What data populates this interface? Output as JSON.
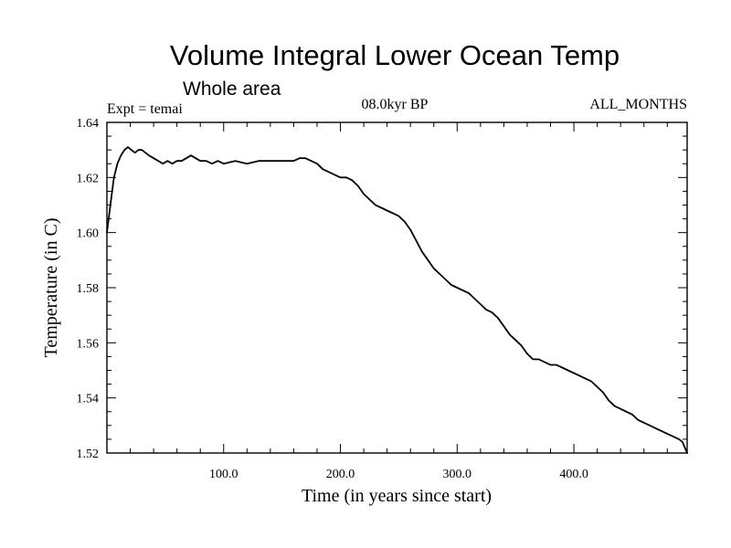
{
  "chart_data": {
    "type": "line",
    "title": "Volume Integral Lower Ocean Temp",
    "subtitle": "Whole area",
    "experiment_label": "Expt = temai",
    "period_label": "08.0kyr BP",
    "months_label": "ALL_MONTHS",
    "xlabel": "Time (in years since start)",
    "ylabel": "Temperature (in C)",
    "xlim": [
      0,
      497
    ],
    "ylim": [
      1.52,
      1.64
    ],
    "x_ticks": [
      100,
      200,
      300,
      400
    ],
    "x_tick_labels": [
      "100.0",
      "200.0",
      "300.0",
      "400.0"
    ],
    "y_ticks": [
      1.52,
      1.54,
      1.56,
      1.58,
      1.6,
      1.62,
      1.64
    ],
    "y_tick_labels": [
      "1.52",
      "1.54",
      "1.56",
      "1.58",
      "1.60",
      "1.62",
      "1.64"
    ],
    "series": [
      {
        "name": "Volume Integral Lower Ocean Temp",
        "color": "#000000",
        "x": [
          0,
          3,
          6,
          9,
          12,
          15,
          18,
          21,
          24,
          27,
          30,
          33,
          36,
          40,
          44,
          48,
          52,
          56,
          60,
          64,
          68,
          72,
          76,
          80,
          85,
          90,
          95,
          100,
          110,
          120,
          130,
          140,
          150,
          160,
          165,
          170,
          175,
          180,
          185,
          190,
          195,
          200,
          205,
          210,
          215,
          220,
          225,
          230,
          235,
          240,
          245,
          250,
          255,
          260,
          265,
          270,
          275,
          280,
          285,
          290,
          295,
          300,
          305,
          310,
          315,
          320,
          325,
          330,
          335,
          340,
          345,
          350,
          355,
          360,
          365,
          370,
          375,
          380,
          385,
          390,
          395,
          400,
          405,
          410,
          415,
          420,
          425,
          430,
          435,
          440,
          445,
          450,
          455,
          460,
          465,
          470,
          475,
          480,
          485,
          490,
          493,
          497
        ],
        "values": [
          1.6,
          1.61,
          1.62,
          1.625,
          1.628,
          1.63,
          1.631,
          1.63,
          1.629,
          1.63,
          1.63,
          1.629,
          1.628,
          1.627,
          1.626,
          1.625,
          1.626,
          1.625,
          1.626,
          1.626,
          1.627,
          1.628,
          1.627,
          1.626,
          1.626,
          1.625,
          1.626,
          1.625,
          1.626,
          1.625,
          1.626,
          1.626,
          1.626,
          1.626,
          1.627,
          1.627,
          1.626,
          1.625,
          1.623,
          1.622,
          1.621,
          1.62,
          1.62,
          1.619,
          1.617,
          1.614,
          1.612,
          1.61,
          1.609,
          1.608,
          1.607,
          1.606,
          1.604,
          1.601,
          1.597,
          1.593,
          1.59,
          1.587,
          1.585,
          1.583,
          1.581,
          1.58,
          1.579,
          1.578,
          1.576,
          1.574,
          1.572,
          1.571,
          1.569,
          1.566,
          1.563,
          1.561,
          1.559,
          1.556,
          1.554,
          1.554,
          1.553,
          1.552,
          1.552,
          1.551,
          1.55,
          1.549,
          1.548,
          1.547,
          1.546,
          1.544,
          1.542,
          1.539,
          1.537,
          1.536,
          1.535,
          1.534,
          1.532,
          1.531,
          1.53,
          1.529,
          1.528,
          1.527,
          1.526,
          1.525,
          1.524,
          1.52
        ]
      }
    ]
  }
}
